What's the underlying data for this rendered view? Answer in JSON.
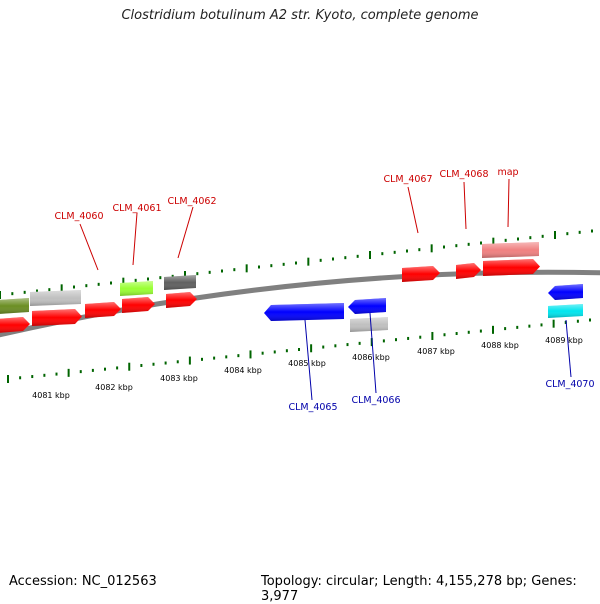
{
  "title": "Clostridium botulinum A2 str. Kyoto, complete genome",
  "footer": {
    "accession": "Accession: NC_012563",
    "summary": "Topology: circular; Length: 4,155,278 bp; Genes: 3,977"
  },
  "scale_labels": [
    "4081 kbp",
    "4082 kbp",
    "4083 kbp",
    "4084 kbp",
    "4085 kbp",
    "4086 kbp",
    "4087 kbp",
    "4088 kbp",
    "4089 kbp"
  ],
  "forward_labels": [
    "CLM_4060",
    "CLM_4061",
    "CLM_4062",
    "CLM_4067",
    "CLM_4068",
    "map"
  ],
  "reverse_labels": [
    "CLM_4065",
    "CLM_4066",
    "CLM_4070"
  ],
  "colors": {
    "backbone": "#808080",
    "forward_gene": "#ff0000",
    "forward_label": "#cc0000",
    "reverse_gene": "#0000ff",
    "reverse_label": "#0000aa",
    "tick": "#006400",
    "olive": "#6b8e23",
    "light_gray": "#c0c0c0",
    "dark_gray": "#606060",
    "lime": "#99ff33",
    "pink": "#f08080",
    "cyan": "#00e5ee"
  }
}
